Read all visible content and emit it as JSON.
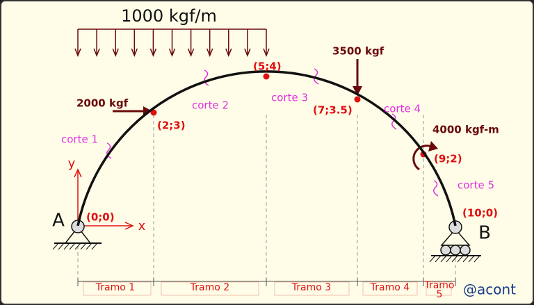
{
  "load": {
    "distributed": "1000 kgf/m",
    "force_left": "2000 kgf",
    "force_top": "3500 kgf",
    "moment": "4000 kgf-m"
  },
  "points": [
    "(0;0)",
    "(2;3)",
    "(5;4)",
    "(7;3.5)",
    "(9;2)",
    "(10;0)"
  ],
  "cuts": [
    "corte 1",
    "corte 2",
    "corte 3",
    "corte 4",
    "corte 5"
  ],
  "spans": [
    "Tramo 1",
    "Tramo 2",
    "Tramo 3",
    "Tramo 4",
    [
      "Tramo",
      "5"
    ]
  ],
  "supports": [
    "A",
    "B"
  ],
  "axes": {
    "y": "y",
    "x": "x"
  },
  "watermark": "@acont"
}
